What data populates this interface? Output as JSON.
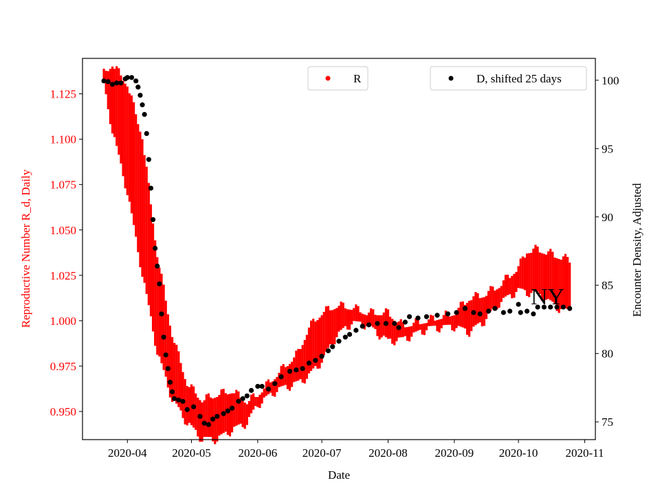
{
  "chart_data": {
    "type": "scatter",
    "title": "",
    "annotation": "NY",
    "xlabel": "Date",
    "ylabel_left": "Reproductive Number R_d, Daily",
    "ylabel_right": "Encounter Density, Adjusted",
    "x_ticks": [
      "2020-04",
      "2020-05",
      "2020-06",
      "2020-07",
      "2020-08",
      "2020-09",
      "2020-10",
      "2020-11"
    ],
    "x_range": [
      "2020-03-11",
      "2020-11-06"
    ],
    "y_left_ticks": [
      "0.950",
      "0.975",
      "1.000",
      "1.025",
      "1.050",
      "1.075",
      "1.100",
      "1.125"
    ],
    "y_left_range": [
      0.9345,
      1.1445
    ],
    "y_right_ticks": [
      "75",
      "80",
      "85",
      "90",
      "95",
      "100"
    ],
    "y_right_range": [
      73.7,
      101.6
    ],
    "grid": false,
    "colors": {
      "R": "#ff0000",
      "D": "#000000",
      "left_axis_text": "#ff0000"
    },
    "legend": [
      {
        "label": "R",
        "placement": "top-center",
        "color": "#ff0000"
      },
      {
        "label": "D, shifted 25 days",
        "placement": "top-right",
        "color": "#000000"
      }
    ],
    "series": [
      {
        "name": "R",
        "axis": "left",
        "style": "error-band",
        "points": [
          {
            "date": "2020-03-21",
            "low": 1.131,
            "high": 1.135
          },
          {
            "date": "2020-03-25",
            "low": 1.106,
            "high": 1.14
          },
          {
            "date": "2020-04-01",
            "low": 1.072,
            "high": 1.129
          },
          {
            "date": "2020-04-08",
            "low": 1.027,
            "high": 1.1
          },
          {
            "date": "2020-04-15",
            "low": 0.984,
            "high": 1.035
          },
          {
            "date": "2020-04-22",
            "low": 0.958,
            "high": 0.991
          },
          {
            "date": "2020-04-29",
            "low": 0.945,
            "high": 0.964
          },
          {
            "date": "2020-05-06",
            "low": 0.936,
            "high": 0.955
          },
          {
            "date": "2020-05-13",
            "low": 0.936,
            "high": 0.958
          },
          {
            "date": "2020-05-20",
            "low": 0.941,
            "high": 0.96
          },
          {
            "date": "2020-05-27",
            "low": 0.945,
            "high": 0.954
          },
          {
            "date": "2020-06-01",
            "low": 0.955,
            "high": 0.958
          },
          {
            "date": "2020-06-10",
            "low": 0.963,
            "high": 0.969
          },
          {
            "date": "2020-06-20",
            "low": 0.967,
            "high": 0.981
          },
          {
            "date": "2020-06-25",
            "low": 0.971,
            "high": 0.995
          },
          {
            "date": "2020-07-01",
            "low": 0.979,
            "high": 1.003
          },
          {
            "date": "2020-07-08",
            "low": 0.993,
            "high": 1.007
          },
          {
            "date": "2020-07-15",
            "low": 1.0,
            "high": 1.006
          },
          {
            "date": "2020-07-22",
            "low": 0.999,
            "high": 1.003
          },
          {
            "date": "2020-08-01",
            "low": 0.99,
            "high": 1.003
          },
          {
            "date": "2020-08-08",
            "low": 0.991,
            "high": 0.996
          },
          {
            "date": "2020-08-20",
            "low": 0.997,
            "high": 0.999
          },
          {
            "date": "2020-09-01",
            "low": 0.998,
            "high": 1.003
          },
          {
            "date": "2020-09-08",
            "low": 0.995,
            "high": 1.011
          },
          {
            "date": "2020-09-15",
            "low": 1.001,
            "high": 1.013
          },
          {
            "date": "2020-09-22",
            "low": 1.011,
            "high": 1.018
          },
          {
            "date": "2020-10-01",
            "low": 1.018,
            "high": 1.028
          },
          {
            "date": "2020-10-05",
            "low": 1.017,
            "high": 1.037
          },
          {
            "date": "2020-10-10",
            "low": 1.016,
            "high": 1.038
          },
          {
            "date": "2020-10-15",
            "low": 1.012,
            "high": 1.036
          },
          {
            "date": "2020-10-20",
            "low": 1.008,
            "high": 1.034
          },
          {
            "date": "2020-10-25",
            "low": 1.006,
            "high": 1.032
          }
        ]
      },
      {
        "name": "D, shifted 25 days",
        "axis": "right",
        "style": "dots",
        "points": [
          {
            "date": "2020-03-21",
            "value": 99.95
          },
          {
            "date": "2020-03-23",
            "value": 99.9
          },
          {
            "date": "2020-03-25",
            "value": 99.7
          },
          {
            "date": "2020-03-27",
            "value": 99.8
          },
          {
            "date": "2020-03-29",
            "value": 99.8
          },
          {
            "date": "2020-03-31",
            "value": 100.1
          },
          {
            "date": "2020-04-01",
            "value": 100.2
          },
          {
            "date": "2020-04-03",
            "value": 100.2
          },
          {
            "date": "2020-04-05",
            "value": 99.95
          },
          {
            "date": "2020-04-06",
            "value": 99.5
          },
          {
            "date": "2020-04-07",
            "value": 98.9
          },
          {
            "date": "2020-04-08",
            "value": 98.2
          },
          {
            "date": "2020-04-09",
            "value": 97.5
          },
          {
            "date": "2020-04-10",
            "value": 96.1
          },
          {
            "date": "2020-04-11",
            "value": 94.2
          },
          {
            "date": "2020-04-12",
            "value": 92.1
          },
          {
            "date": "2020-04-13",
            "value": 89.8
          },
          {
            "date": "2020-04-14",
            "value": 87.7
          },
          {
            "date": "2020-04-15",
            "value": 86.4
          },
          {
            "date": "2020-04-16",
            "value": 85.1
          },
          {
            "date": "2020-04-17",
            "value": 82.9
          },
          {
            "date": "2020-04-18",
            "value": 81.2
          },
          {
            "date": "2020-04-19",
            "value": 79.9
          },
          {
            "date": "2020-04-20",
            "value": 78.9
          },
          {
            "date": "2020-04-21",
            "value": 77.9
          },
          {
            "date": "2020-04-22",
            "value": 77.2
          },
          {
            "date": "2020-04-23",
            "value": 76.7
          },
          {
            "date": "2020-04-25",
            "value": 76.6
          },
          {
            "date": "2020-04-27",
            "value": 76.5
          },
          {
            "date": "2020-04-29",
            "value": 75.9
          },
          {
            "date": "2020-05-02",
            "value": 76.1
          },
          {
            "date": "2020-05-05",
            "value": 75.4
          },
          {
            "date": "2020-05-07",
            "value": 74.9
          },
          {
            "date": "2020-05-09",
            "value": 74.8
          },
          {
            "date": "2020-05-11",
            "value": 75.2
          },
          {
            "date": "2020-05-13",
            "value": 75.4
          },
          {
            "date": "2020-05-16",
            "value": 75.6
          },
          {
            "date": "2020-05-18",
            "value": 75.8
          },
          {
            "date": "2020-05-20",
            "value": 76.0
          },
          {
            "date": "2020-05-23",
            "value": 76.5
          },
          {
            "date": "2020-05-25",
            "value": 76.7
          },
          {
            "date": "2020-05-27",
            "value": 76.9
          },
          {
            "date": "2020-05-29",
            "value": 77.3
          },
          {
            "date": "2020-06-01",
            "value": 77.6
          },
          {
            "date": "2020-06-03",
            "value": 77.6
          },
          {
            "date": "2020-06-06",
            "value": 77.4
          },
          {
            "date": "2020-06-09",
            "value": 77.8
          },
          {
            "date": "2020-06-12",
            "value": 78.3
          },
          {
            "date": "2020-06-16",
            "value": 78.7
          },
          {
            "date": "2020-06-19",
            "value": 78.8
          },
          {
            "date": "2020-06-22",
            "value": 78.9
          },
          {
            "date": "2020-06-25",
            "value": 79.3
          },
          {
            "date": "2020-06-28",
            "value": 79.5
          },
          {
            "date": "2020-07-01",
            "value": 79.8
          },
          {
            "date": "2020-07-04",
            "value": 80.2
          },
          {
            "date": "2020-07-06",
            "value": 80.5
          },
          {
            "date": "2020-07-09",
            "value": 80.9
          },
          {
            "date": "2020-07-12",
            "value": 81.2
          },
          {
            "date": "2020-07-14",
            "value": 81.4
          },
          {
            "date": "2020-07-17",
            "value": 81.7
          },
          {
            "date": "2020-07-20",
            "value": 82.0
          },
          {
            "date": "2020-07-23",
            "value": 82.1
          },
          {
            "date": "2020-07-27",
            "value": 82.2
          },
          {
            "date": "2020-07-31",
            "value": 82.2
          },
          {
            "date": "2020-08-04",
            "value": 82.2
          },
          {
            "date": "2020-08-06",
            "value": 81.9
          },
          {
            "date": "2020-08-09",
            "value": 82.3
          },
          {
            "date": "2020-08-11",
            "value": 82.7
          },
          {
            "date": "2020-08-15",
            "value": 82.6
          },
          {
            "date": "2020-08-19",
            "value": 82.7
          },
          {
            "date": "2020-08-24",
            "value": 82.8
          },
          {
            "date": "2020-08-29",
            "value": 82.9
          },
          {
            "date": "2020-09-02",
            "value": 83.0
          },
          {
            "date": "2020-09-06",
            "value": 83.3
          },
          {
            "date": "2020-09-10",
            "value": 83.0
          },
          {
            "date": "2020-09-13",
            "value": 82.9
          },
          {
            "date": "2020-09-17",
            "value": 83.1
          },
          {
            "date": "2020-09-20",
            "value": 83.3
          },
          {
            "date": "2020-09-24",
            "value": 83.0
          },
          {
            "date": "2020-09-27",
            "value": 83.1
          },
          {
            "date": "2020-10-01",
            "value": 83.6
          },
          {
            "date": "2020-10-02",
            "value": 83.0
          },
          {
            "date": "2020-10-05",
            "value": 83.1
          },
          {
            "date": "2020-10-08",
            "value": 82.9
          },
          {
            "date": "2020-10-10",
            "value": 83.4
          },
          {
            "date": "2020-10-13",
            "value": 83.4
          },
          {
            "date": "2020-10-16",
            "value": 83.4
          },
          {
            "date": "2020-10-19",
            "value": 83.4
          },
          {
            "date": "2020-10-22",
            "value": 83.4
          },
          {
            "date": "2020-10-25",
            "value": 83.3
          }
        ]
      }
    ]
  }
}
